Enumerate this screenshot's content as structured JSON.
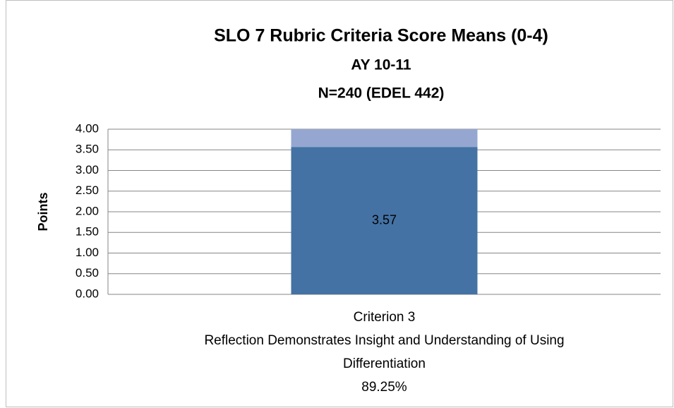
{
  "chart_data": {
    "type": "stacked_bar",
    "title": "SLO 7 Rubric Criteria Score Means (0-4)",
    "subtitle": [
      "AY 10-11",
      "N=240 (EDEL 442)"
    ],
    "y_label": "Points",
    "categories": [
      "Criterion 3\nReflection Demonstrates Insight and Understanding of Using\nDifferentiation\n89.25%"
    ],
    "series": [
      {
        "color": "#4472a4",
        "values": [
          3.57
        ],
        "show_labels": true
      },
      {
        "color": "#95a7d1",
        "values": [
          0.43
        ],
        "show_labels": false
      }
    ],
    "ylim": [
      0,
      4
    ],
    "yticks": [
      {
        "value": 0,
        "label": "0.00"
      },
      {
        "value": 0.5,
        "label": "0.50"
      },
      {
        "value": 1,
        "label": "1.00"
      },
      {
        "value": 1.5,
        "label": "1.50"
      },
      {
        "value": 2,
        "label": "2.00"
      },
      {
        "value": 2.5,
        "label": "2.50"
      },
      {
        "value": 3,
        "label": "3.00"
      },
      {
        "value": 3.5,
        "label": "3.50"
      },
      {
        "value": 4,
        "label": "4.00"
      }
    ],
    "grid": true
  }
}
